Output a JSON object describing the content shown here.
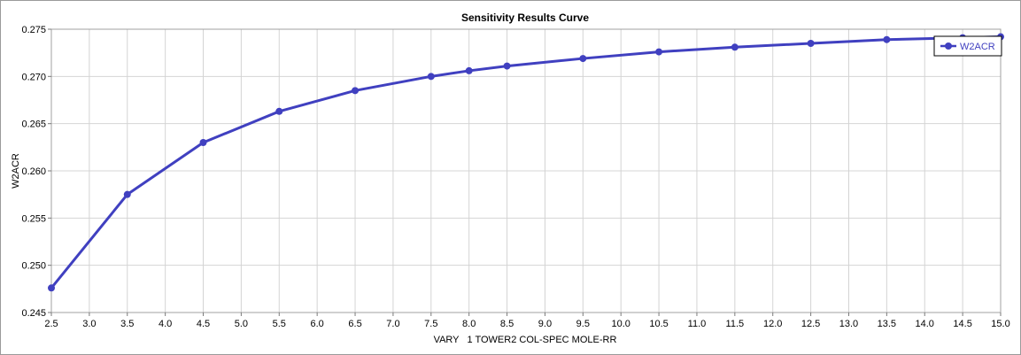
{
  "chart_data": {
    "type": "line",
    "title": "Sensitivity Results Curve",
    "xlabel": "VARY   1 TOWER2 COL-SPEC MOLE-RR",
    "ylabel": "W2ACR",
    "xlim": [
      2.5,
      15.0
    ],
    "ylim": [
      0.245,
      0.275
    ],
    "x_ticks": [
      "2.5",
      "3.0",
      "3.5",
      "4.0",
      "4.5",
      "5.0",
      "5.5",
      "6.0",
      "6.5",
      "7.0",
      "7.5",
      "8.0",
      "8.5",
      "9.0",
      "9.5",
      "10.0",
      "10.5",
      "11.0",
      "11.5",
      "12.0",
      "12.5",
      "13.0",
      "13.5",
      "14.0",
      "14.5",
      "15.0"
    ],
    "y_ticks": [
      "0.245",
      "0.250",
      "0.255",
      "0.260",
      "0.265",
      "0.270",
      "0.275"
    ],
    "grid": true,
    "legend_position": "top-right",
    "series": [
      {
        "name": "W2ACR",
        "color": "#4040c0",
        "x": [
          2.5,
          3.5,
          4.5,
          5.5,
          6.5,
          7.5,
          8.0,
          8.5,
          9.5,
          10.5,
          11.5,
          12.5,
          13.5,
          14.5,
          15.0
        ],
        "y": [
          0.2476,
          0.2575,
          0.263,
          0.2663,
          0.2685,
          0.27,
          0.2706,
          0.2711,
          0.2719,
          0.2726,
          0.2731,
          0.2735,
          0.2739,
          0.2741,
          0.2742
        ]
      }
    ]
  }
}
